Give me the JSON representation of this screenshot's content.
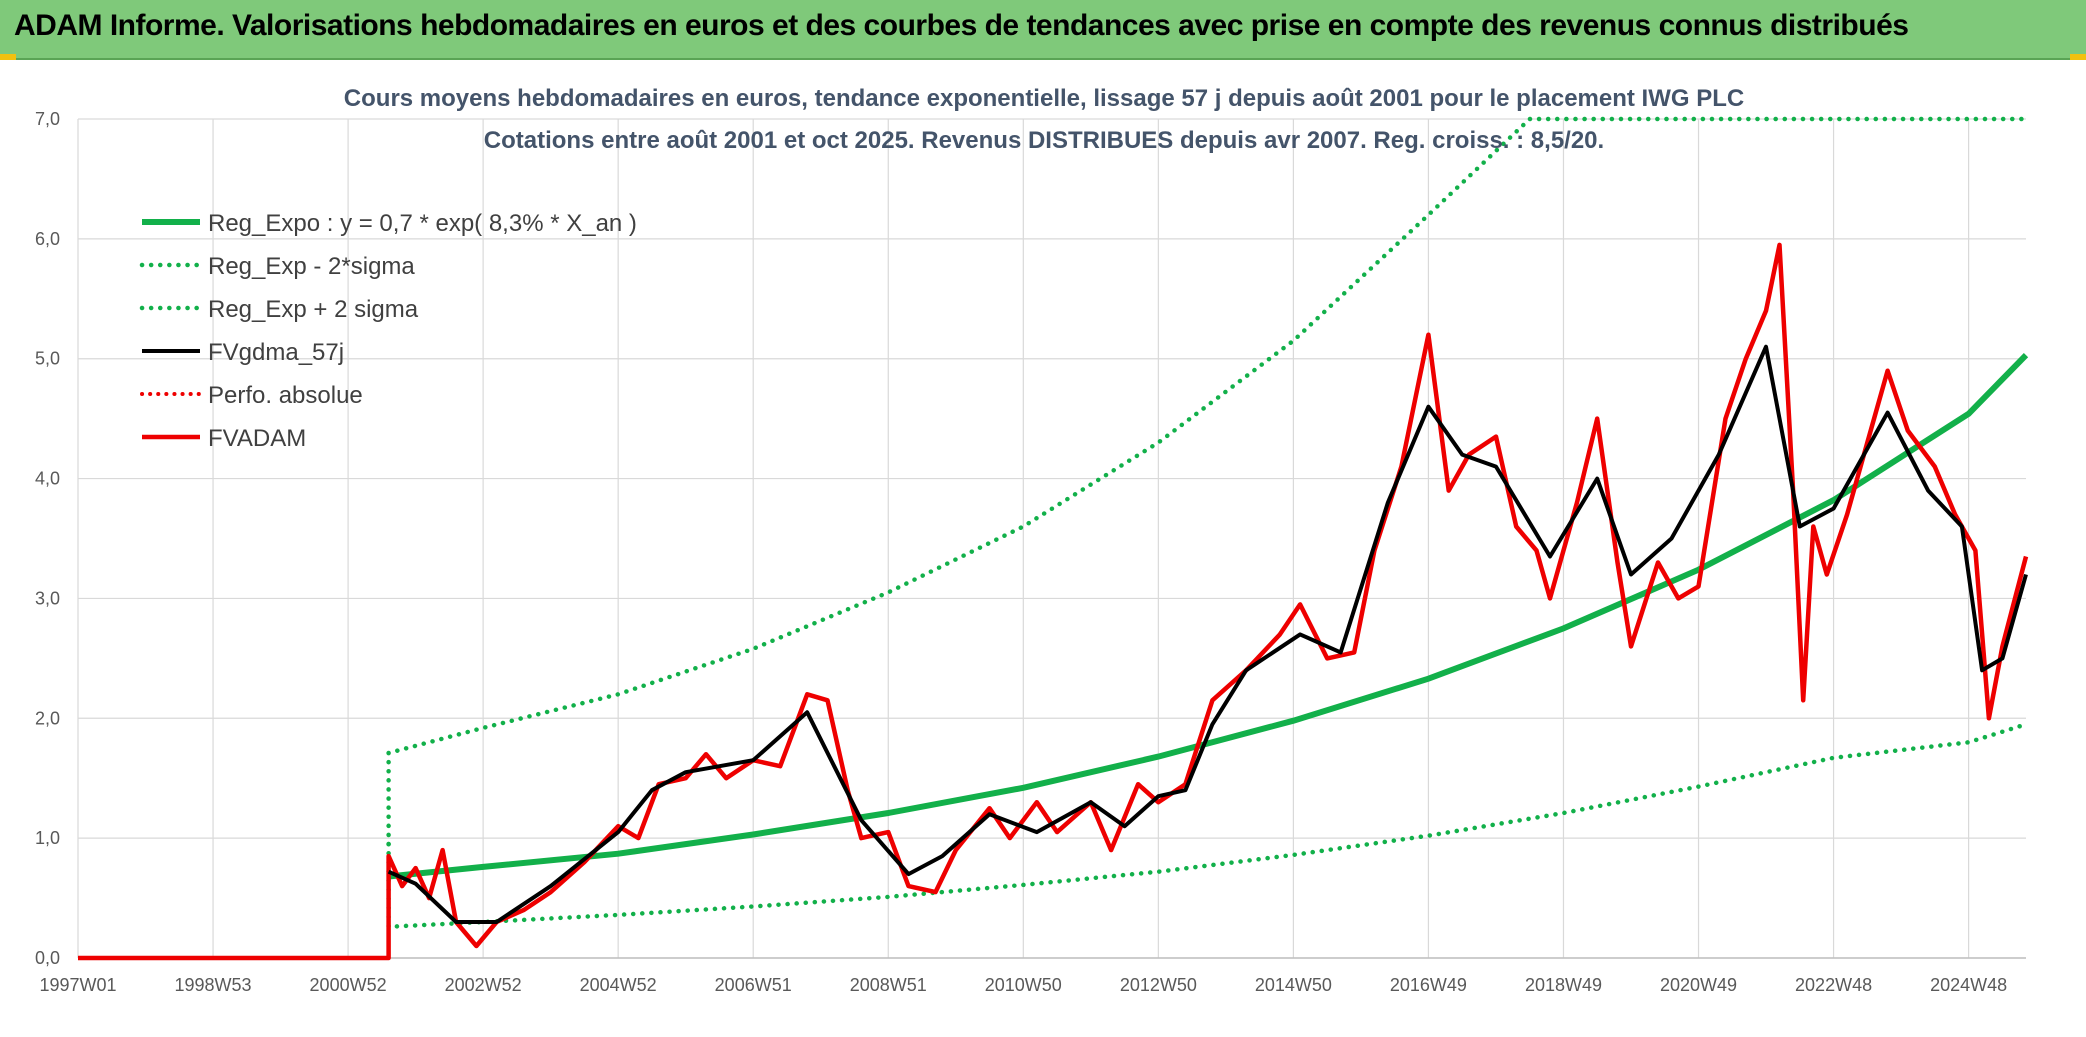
{
  "header": {
    "title": "ADAM Informe. Valorisations hebdomadaires en euros et des courbes de tendances avec prise en compte des revenus connus distribués"
  },
  "colors": {
    "banner": "#7fc97a",
    "green": "#12b04a",
    "black": "#000000",
    "red": "#ee0000",
    "grid": "#d9d9d9"
  },
  "chart_data": {
    "type": "line",
    "title": "Cours moyens hebdomadaires en euros, tendance exponentielle, lissage 57 j depuis août 2001 pour le placement IWG PLC",
    "subtitle": "Cotations entre août 2001 et oct 2025. Revenus DISTRIBUES depuis avr 2007. Reg. croiss. : 8,5/20.",
    "x_range": [
      1997.0,
      2025.85
    ],
    "ylim": [
      0,
      7
    ],
    "yticks": [
      "0,0",
      "1,0",
      "2,0",
      "3,0",
      "4,0",
      "5,0",
      "6,0",
      "7,0"
    ],
    "xticks": [
      {
        "label": "1997W01",
        "year": 1997.0
      },
      {
        "label": "1998W53",
        "year": 1999.0
      },
      {
        "label": "2000W52",
        "year": 2001.0
      },
      {
        "label": "2002W52",
        "year": 2003.0
      },
      {
        "label": "2004W52",
        "year": 2005.0
      },
      {
        "label": "2006W51",
        "year": 2007.0
      },
      {
        "label": "2008W51",
        "year": 2009.0
      },
      {
        "label": "2010W50",
        "year": 2011.0
      },
      {
        "label": "2012W50",
        "year": 2013.0
      },
      {
        "label": "2014W50",
        "year": 2015.0
      },
      {
        "label": "2016W49",
        "year": 2017.0
      },
      {
        "label": "2018W49",
        "year": 2019.0
      },
      {
        "label": "2020W49",
        "year": 2021.0
      },
      {
        "label": "2022W48",
        "year": 2023.0
      },
      {
        "label": "2024W48",
        "year": 2025.0
      }
    ],
    "series": [
      {
        "name": "Reg_Expo : y = 0,7 * exp( 8,3% *  X_an )",
        "style": "solid-green",
        "points": [
          [
            2001.6,
            0.68
          ],
          [
            2003,
            0.76
          ],
          [
            2005,
            0.87
          ],
          [
            2007,
            1.03
          ],
          [
            2009,
            1.21
          ],
          [
            2011,
            1.42
          ],
          [
            2013,
            1.68
          ],
          [
            2015,
            1.98
          ],
          [
            2017,
            2.33
          ],
          [
            2019,
            2.75
          ],
          [
            2021,
            3.24
          ],
          [
            2023,
            3.82
          ],
          [
            2025,
            4.54
          ],
          [
            2025.85,
            5.03
          ]
        ]
      },
      {
        "name": "Reg_Exp - 2*sigma",
        "style": "dotted-green",
        "points": [
          [
            2001.6,
            0.95
          ],
          [
            2001.6,
            0.26
          ],
          [
            2003,
            0.3
          ],
          [
            2005,
            0.36
          ],
          [
            2007,
            0.43
          ],
          [
            2009,
            0.51
          ],
          [
            2011,
            0.61
          ],
          [
            2013,
            0.72
          ],
          [
            2015,
            0.86
          ],
          [
            2017,
            1.02
          ],
          [
            2019,
            1.21
          ],
          [
            2021,
            1.43
          ],
          [
            2023,
            1.67
          ],
          [
            2025,
            1.8
          ],
          [
            2025.85,
            1.95
          ]
        ]
      },
      {
        "name": "Reg_Exp + 2 sigma",
        "style": "dotted-green",
        "points": [
          [
            2001.6,
            0.95
          ],
          [
            2001.6,
            1.71
          ],
          [
            2003,
            1.92
          ],
          [
            2005,
            2.2
          ],
          [
            2007,
            2.58
          ],
          [
            2009,
            3.05
          ],
          [
            2011,
            3.6
          ],
          [
            2013,
            4.3
          ],
          [
            2015,
            5.15
          ],
          [
            2017,
            6.2
          ],
          [
            2018.5,
            7.0
          ],
          [
            2025.85,
            7.0
          ]
        ]
      },
      {
        "name": "FVgdma_57j",
        "style": "solid-black",
        "points": [
          [
            2001.6,
            0.72
          ],
          [
            2002,
            0.62
          ],
          [
            2002.6,
            0.3
          ],
          [
            2003.2,
            0.3
          ],
          [
            2004,
            0.6
          ],
          [
            2005,
            1.05
          ],
          [
            2005.5,
            1.4
          ],
          [
            2006,
            1.55
          ],
          [
            2007,
            1.65
          ],
          [
            2007.8,
            2.05
          ],
          [
            2008.2,
            1.6
          ],
          [
            2008.6,
            1.15
          ],
          [
            2009.3,
            0.7
          ],
          [
            2009.8,
            0.85
          ],
          [
            2010.5,
            1.2
          ],
          [
            2011.2,
            1.05
          ],
          [
            2012,
            1.3
          ],
          [
            2012.5,
            1.1
          ],
          [
            2013,
            1.35
          ],
          [
            2013.4,
            1.4
          ],
          [
            2013.8,
            1.95
          ],
          [
            2014.3,
            2.4
          ],
          [
            2015.1,
            2.7
          ],
          [
            2015.7,
            2.55
          ],
          [
            2016.4,
            3.8
          ],
          [
            2017,
            4.6
          ],
          [
            2017.5,
            4.2
          ],
          [
            2018,
            4.1
          ],
          [
            2018.8,
            3.35
          ],
          [
            2019.5,
            4.0
          ],
          [
            2020,
            3.2
          ],
          [
            2020.6,
            3.5
          ],
          [
            2021.3,
            4.2
          ],
          [
            2022,
            5.1
          ],
          [
            2022.5,
            3.6
          ],
          [
            2023,
            3.75
          ],
          [
            2023.8,
            4.55
          ],
          [
            2024.4,
            3.9
          ],
          [
            2024.9,
            3.6
          ],
          [
            2025.2,
            2.4
          ],
          [
            2025.5,
            2.5
          ],
          [
            2025.85,
            3.2
          ]
        ]
      },
      {
        "name": "Perfo. absolue",
        "style": "dotted-red",
        "points": []
      },
      {
        "name": "FVADAM",
        "style": "solid-red",
        "points": [
          [
            1997,
            0
          ],
          [
            2001.6,
            0
          ],
          [
            2001.6,
            0.85
          ],
          [
            2001.8,
            0.6
          ],
          [
            2002,
            0.75
          ],
          [
            2002.2,
            0.5
          ],
          [
            2002.4,
            0.9
          ],
          [
            2002.6,
            0.3
          ],
          [
            2002.9,
            0.1
          ],
          [
            2003.2,
            0.3
          ],
          [
            2003.6,
            0.4
          ],
          [
            2004,
            0.55
          ],
          [
            2004.5,
            0.8
          ],
          [
            2005,
            1.1
          ],
          [
            2005.3,
            1.0
          ],
          [
            2005.6,
            1.45
          ],
          [
            2006,
            1.5
          ],
          [
            2006.3,
            1.7
          ],
          [
            2006.6,
            1.5
          ],
          [
            2007,
            1.65
          ],
          [
            2007.4,
            1.6
          ],
          [
            2007.8,
            2.2
          ],
          [
            2008.1,
            2.15
          ],
          [
            2008.4,
            1.4
          ],
          [
            2008.6,
            1.0
          ],
          [
            2009,
            1.05
          ],
          [
            2009.3,
            0.6
          ],
          [
            2009.7,
            0.55
          ],
          [
            2010,
            0.9
          ],
          [
            2010.5,
            1.25
          ],
          [
            2010.8,
            1.0
          ],
          [
            2011.2,
            1.3
          ],
          [
            2011.5,
            1.05
          ],
          [
            2012,
            1.3
          ],
          [
            2012.3,
            0.9
          ],
          [
            2012.7,
            1.45
          ],
          [
            2013,
            1.3
          ],
          [
            2013.4,
            1.45
          ],
          [
            2013.8,
            2.15
          ],
          [
            2014.3,
            2.4
          ],
          [
            2014.8,
            2.7
          ],
          [
            2015.1,
            2.95
          ],
          [
            2015.5,
            2.5
          ],
          [
            2015.9,
            2.55
          ],
          [
            2016.2,
            3.4
          ],
          [
            2016.6,
            4.1
          ],
          [
            2017,
            5.2
          ],
          [
            2017.3,
            3.9
          ],
          [
            2017.6,
            4.2
          ],
          [
            2018,
            4.35
          ],
          [
            2018.3,
            3.6
          ],
          [
            2018.6,
            3.4
          ],
          [
            2018.8,
            3.0
          ],
          [
            2019.2,
            3.8
          ],
          [
            2019.5,
            4.5
          ],
          [
            2019.8,
            3.3
          ],
          [
            2020,
            2.6
          ],
          [
            2020.4,
            3.3
          ],
          [
            2020.7,
            3.0
          ],
          [
            2021,
            3.1
          ],
          [
            2021.4,
            4.5
          ],
          [
            2021.7,
            5.0
          ],
          [
            2022,
            5.4
          ],
          [
            2022.2,
            5.95
          ],
          [
            2022.4,
            3.9
          ],
          [
            2022.55,
            2.15
          ],
          [
            2022.7,
            3.6
          ],
          [
            2022.9,
            3.2
          ],
          [
            2023.2,
            3.7
          ],
          [
            2023.5,
            4.3
          ],
          [
            2023.8,
            4.9
          ],
          [
            2024.1,
            4.4
          ],
          [
            2024.5,
            4.1
          ],
          [
            2024.8,
            3.7
          ],
          [
            2025.1,
            3.4
          ],
          [
            2025.3,
            2.0
          ],
          [
            2025.5,
            2.6
          ],
          [
            2025.85,
            3.35
          ]
        ]
      }
    ]
  }
}
